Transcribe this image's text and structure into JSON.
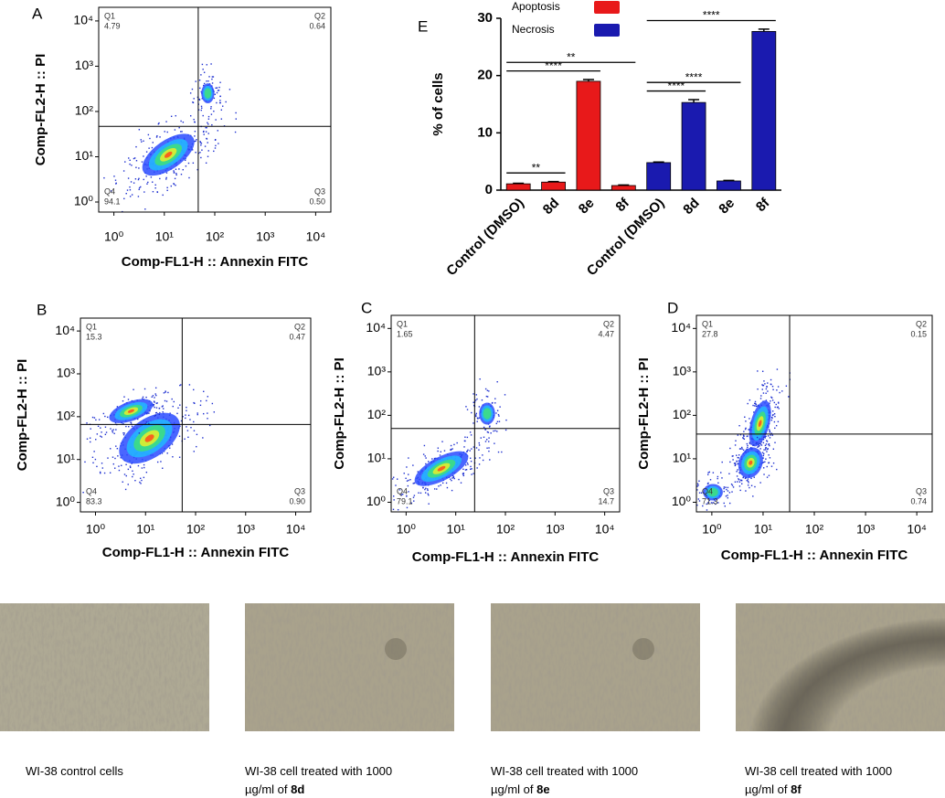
{
  "chart_data": [
    {
      "type": "flow",
      "panel": "A",
      "x_label": "Comp-FL1-H :: Annexin FITC",
      "y_label": "Comp-FL2-H :: PI",
      "log_scale": true,
      "xlim": [
        0.5,
        20000
      ],
      "ylim": [
        0.6,
        20000
      ],
      "xticks": [
        {
          "value": 1,
          "label": "10⁰"
        },
        {
          "value": 10,
          "label": "10¹"
        },
        {
          "value": 100,
          "label": "10²"
        },
        {
          "value": 1000,
          "label": "10³"
        },
        {
          "value": 10000,
          "label": "10⁴"
        }
      ],
      "yticks": [
        {
          "value": 1,
          "label": "10⁰"
        },
        {
          "value": 10,
          "label": "10¹"
        },
        {
          "value": 100,
          "label": "10²"
        },
        {
          "value": 1000,
          "label": "10³"
        },
        {
          "value": 10000,
          "label": "10⁴"
        }
      ],
      "gate": [
        47,
        47
      ],
      "quadrants": [
        "Q1",
        "Q2",
        "Q3",
        "Q4"
      ],
      "values": [
        4.79,
        0.64,
        0.5,
        94.1
      ],
      "value_labels": [
        "4.79",
        "0.64",
        "0.50",
        "94.1"
      ]
    },
    {
      "type": "flow",
      "panel": "B",
      "x_label": "Comp-FL1-H :: Annexin FITC",
      "y_label": "Comp-FL2-H :: PI",
      "log_scale": true,
      "xlim": [
        0.5,
        20000
      ],
      "ylim": [
        0.6,
        20000
      ],
      "xticks": [
        {
          "value": 1,
          "label": "10⁰"
        },
        {
          "value": 10,
          "label": "10¹"
        },
        {
          "value": 100,
          "label": "10²"
        },
        {
          "value": 1000,
          "label": "10³"
        },
        {
          "value": 10000,
          "label": "10⁴"
        }
      ],
      "yticks": [
        {
          "value": 1,
          "label": "10⁰"
        },
        {
          "value": 10,
          "label": "10¹"
        },
        {
          "value": 100,
          "label": "10²"
        },
        {
          "value": 1000,
          "label": "10³"
        },
        {
          "value": 10000,
          "label": "10⁴"
        }
      ],
      "gate": [
        54,
        66
      ],
      "quadrants": [
        "Q1",
        "Q2",
        "Q3",
        "Q4"
      ],
      "values": [
        15.3,
        0.47,
        0.9,
        83.3
      ],
      "value_labels": [
        "15.3",
        "0.47",
        "0.90",
        "83.3"
      ]
    },
    {
      "type": "flow",
      "panel": "C",
      "x_label": "Comp-FL1-H :: Annexin FITC",
      "y_label": "Comp-FL2-H :: PI",
      "log_scale": true,
      "xlim": [
        0.5,
        20000
      ],
      "ylim": [
        0.6,
        20000
      ],
      "xticks": [
        {
          "value": 1,
          "label": "10⁰"
        },
        {
          "value": 10,
          "label": "10¹"
        },
        {
          "value": 100,
          "label": "10²"
        },
        {
          "value": 1000,
          "label": "10³"
        },
        {
          "value": 10000,
          "label": "10⁴"
        }
      ],
      "yticks": [
        {
          "value": 1,
          "label": "10⁰"
        },
        {
          "value": 10,
          "label": "10¹"
        },
        {
          "value": 100,
          "label": "10²"
        },
        {
          "value": 1000,
          "label": "10³"
        },
        {
          "value": 10000,
          "label": "10⁴"
        }
      ],
      "gate": [
        24,
        50
      ],
      "quadrants": [
        "Q1",
        "Q2",
        "Q3",
        "Q4"
      ],
      "values": [
        1.65,
        4.47,
        14.7,
        79.1
      ],
      "value_labels": [
        "1.65",
        "4.47",
        "14.7",
        "79.1"
      ]
    },
    {
      "type": "flow",
      "panel": "D",
      "x_label": "Comp-FL1-H :: Annexin FITC",
      "y_label": "Comp-FL2-H :: PI",
      "log_scale": true,
      "xlim": [
        0.5,
        20000
      ],
      "ylim": [
        0.6,
        20000
      ],
      "xticks": [
        {
          "value": 1,
          "label": "10⁰"
        },
        {
          "value": 10,
          "label": "10¹"
        },
        {
          "value": 100,
          "label": "10²"
        },
        {
          "value": 1000,
          "label": "10³"
        },
        {
          "value": 10000,
          "label": "10⁴"
        }
      ],
      "yticks": [
        {
          "value": 1,
          "label": "10⁰"
        },
        {
          "value": 10,
          "label": "10¹"
        },
        {
          "value": 100,
          "label": "10²"
        },
        {
          "value": 1000,
          "label": "10³"
        },
        {
          "value": 10000,
          "label": "10⁴"
        }
      ],
      "gate": [
        33,
        37
      ],
      "quadrants": [
        "Q1",
        "Q2",
        "Q3",
        "Q4"
      ],
      "values": [
        27.8,
        0.15,
        0.74,
        71.3
      ],
      "value_labels": [
        "27.8",
        "0.15",
        "0.74",
        "71.3"
      ]
    },
    {
      "type": "bar",
      "panel": "E",
      "y_label": "% of cells",
      "legend": "top-left",
      "categories": [
        "Control (DMSO)",
        "8d",
        "8e",
        "8f",
        "Control (DMSO)",
        "8d",
        "8e",
        "8f"
      ],
      "series": [
        {
          "name": "Apoptosis",
          "color": "#e8191a",
          "values": [
            1.1,
            1.4,
            19,
            0.8,
            null,
            null,
            null,
            null
          ],
          "errors": [
            0.1,
            0.1,
            0.3,
            0.1,
            null,
            null,
            null,
            null
          ]
        },
        {
          "name": "Necrosis",
          "color": "#1a1aaf",
          "values": [
            null,
            null,
            null,
            null,
            4.8,
            15.3,
            1.6,
            27.7
          ],
          "errors": [
            null,
            null,
            null,
            null,
            0.1,
            0.5,
            0.1,
            0.4
          ]
        }
      ],
      "ylim": [
        0,
        30
      ],
      "yticks": [
        0,
        10,
        20,
        30
      ],
      "comparisons": [
        {
          "from": 0,
          "to": 1,
          "label": "**"
        },
        {
          "from": 0,
          "to": 2,
          "label": "****"
        },
        {
          "from": 0,
          "to": 3,
          "label": "**"
        },
        {
          "from": 4,
          "to": 5,
          "label": "****"
        },
        {
          "from": 4,
          "to": 6,
          "label": "****"
        },
        {
          "from": 4,
          "to": 7,
          "label": "****"
        }
      ]
    }
  ],
  "micrographs": [
    {
      "caption": [
        "WI-38 control cells"
      ],
      "compound": null
    },
    {
      "caption": [
        "WI-38 cell treated with 1000",
        "µg/ml of "
      ],
      "compound": "8d"
    },
    {
      "caption": [
        "WI-38 cell treated with 1000",
        "µg/ml of "
      ],
      "compound": "8e"
    },
    {
      "caption": [
        "WI-38 cell treated with 1000",
        "µg/ml of "
      ],
      "compound": "8f"
    }
  ]
}
